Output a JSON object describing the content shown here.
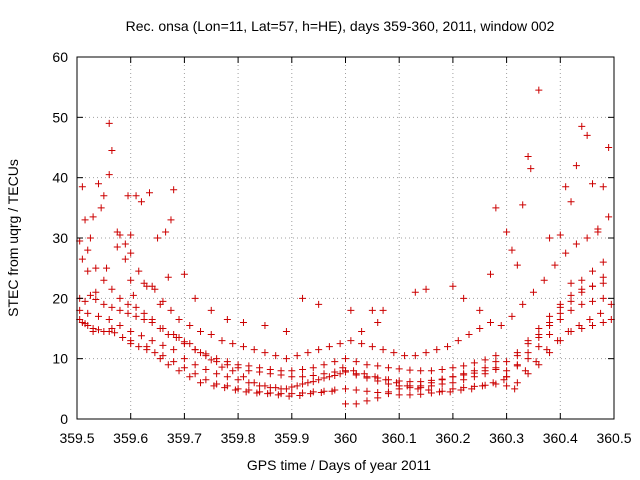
{
  "chart_data": {
    "type": "scatter",
    "title": "Rec. onsa (Lon=11, Lat=57, h=HE), days 359-360, 2011, window 002",
    "xlabel": "GPS time / Days of year 2011",
    "ylabel": "STEC from uqrg / TECUs",
    "xlim": [
      359.5,
      360.5
    ],
    "ylim": [
      0,
      60
    ],
    "xticks": [
      359.5,
      359.6,
      359.7,
      359.8,
      359.9,
      360,
      360.1,
      360.2,
      360.3,
      360.4,
      360.5
    ],
    "xtick_labels": [
      "359.5",
      "359.6",
      "359.7",
      "359.8",
      "359.9",
      "360",
      "360.1",
      "360.2",
      "360.3",
      "360.4",
      "360.5"
    ],
    "yticks": [
      0,
      10,
      20,
      30,
      40,
      50,
      60
    ],
    "ytick_labels": [
      "0",
      "10",
      "20",
      "30",
      "40",
      "50",
      "60"
    ],
    "grid": true,
    "marker": "plus",
    "color": "#cc0000",
    "series": [
      {
        "x": [
          359.505,
          359.51,
          359.515,
          359.52,
          359.53,
          359.54,
          359.55,
          359.56,
          359.57,
          359.585,
          359.6,
          359.615,
          359.63,
          359.645,
          359.66,
          359.68,
          359.7,
          359.72,
          359.74,
          359.76,
          359.78,
          359.8,
          359.82,
          359.84,
          359.86,
          359.88,
          359.9,
          359.92,
          359.94,
          359.96,
          359.98,
          360.0,
          360.02,
          360.04,
          360.06,
          360.08,
          360.1,
          360.12,
          360.14,
          360.16,
          360.18,
          360.2,
          360.22,
          360.24,
          360.26,
          360.28,
          360.3,
          360.32,
          360.34,
          360.36,
          360.38,
          360.4,
          360.42,
          360.44,
          360.46,
          360.48,
          360.495
        ],
        "y": [
          16.5,
          16.0,
          15.8,
          15.5,
          15.0,
          14.8,
          14.5,
          14.5,
          14.3,
          13.5,
          12.5,
          12.0,
          11.5,
          11.0,
          10.5,
          9.5,
          8.5,
          7.5,
          6.5,
          5.8,
          5.5,
          5.0,
          4.8,
          4.5,
          4.3,
          4.2,
          4.2,
          4.3,
          4.5,
          4.6,
          4.8,
          5.0,
          4.8,
          4.6,
          4.4,
          4.2,
          4.0,
          4.0,
          4.1,
          4.3,
          4.6,
          5.0,
          5.2,
          5.4,
          5.6,
          5.8,
          5.5,
          6.0,
          7.5,
          9.0,
          11.0,
          13.0,
          14.5,
          15.0,
          15.5,
          16.0,
          16.5
        ]
      },
      {
        "x": [
          359.505,
          359.515,
          359.525,
          359.535,
          359.55,
          359.565,
          359.58,
          359.595,
          359.61,
          359.625,
          359.64,
          359.655,
          359.67,
          359.685,
          359.7,
          359.72,
          359.74,
          359.76,
          359.78,
          359.8,
          359.82,
          359.84,
          359.86,
          359.88,
          359.9,
          359.92,
          359.94,
          359.96,
          359.98,
          360.0,
          360.02,
          360.04,
          360.06,
          360.08,
          360.1,
          360.12,
          360.14,
          360.16,
          360.18,
          360.2,
          360.22,
          360.24,
          360.26,
          360.28,
          360.3,
          360.32,
          360.34,
          360.36,
          360.38,
          360.4,
          360.42,
          360.44,
          360.46,
          360.48,
          360.495
        ],
        "y": [
          20.0,
          19.5,
          20.5,
          19.8,
          19.0,
          18.5,
          18.0,
          17.5,
          17.0,
          16.5,
          16.0,
          15.0,
          14.0,
          13.5,
          12.5,
          11.5,
          10.5,
          9.5,
          9.0,
          8.5,
          8.0,
          7.8,
          7.5,
          7.3,
          7.0,
          7.0,
          7.2,
          7.5,
          7.8,
          8.0,
          7.5,
          7.0,
          6.8,
          6.5,
          6.3,
          6.2,
          6.2,
          6.4,
          6.6,
          7.0,
          7.3,
          7.6,
          8.0,
          8.5,
          8.0,
          8.8,
          10.0,
          12.0,
          14.0,
          16.5,
          18.0,
          19.0,
          19.5,
          20.0,
          19.0
        ]
      },
      {
        "x": [
          359.51,
          359.52,
          359.535,
          359.55,
          359.565,
          359.58,
          359.595,
          359.61,
          359.625,
          359.64,
          359.66,
          359.68,
          359.7,
          359.72,
          359.74,
          359.76,
          359.78,
          359.8,
          359.82,
          359.84,
          359.86,
          359.88,
          359.9,
          359.92,
          359.94,
          359.96,
          359.98,
          360.0,
          360.02,
          360.04,
          360.06,
          360.08,
          360.1,
          360.12,
          360.14,
          360.16,
          360.18,
          360.2,
          360.22,
          360.24,
          360.26,
          360.28,
          360.3,
          360.32,
          360.34,
          360.36,
          360.38,
          360.4,
          360.42,
          360.44,
          360.46,
          360.48
        ],
        "y": [
          26.5,
          28.0,
          25.0,
          23.0,
          21.5,
          20.0,
          19.0,
          18.5,
          17.5,
          16.5,
          15.0,
          14.0,
          12.8,
          11.5,
          10.8,
          10.0,
          9.5,
          9.0,
          8.8,
          8.5,
          8.2,
          8.0,
          8.0,
          8.2,
          8.5,
          9.0,
          9.5,
          10.0,
          9.5,
          9.0,
          8.8,
          8.5,
          8.3,
          8.1,
          8.0,
          8.0,
          8.2,
          8.5,
          8.8,
          9.3,
          9.8,
          10.5,
          9.5,
          11.0,
          13.0,
          15.0,
          17.0,
          19.0,
          20.5,
          21.5,
          22.0,
          23.5
        ]
      },
      {
        "x": [
          359.505,
          359.515,
          359.53,
          359.545,
          359.56,
          359.575,
          359.59,
          359.6,
          359.615,
          359.63,
          359.645,
          359.66,
          359.675,
          359.69,
          359.71,
          359.73,
          359.75,
          359.77,
          359.79,
          359.81,
          359.83,
          359.85,
          359.87,
          359.89,
          359.91,
          359.93,
          359.95,
          359.97,
          359.99,
          360.01,
          360.03,
          360.05,
          360.07,
          360.09,
          360.11,
          360.13,
          360.15,
          360.17,
          360.19,
          360.21,
          360.23,
          360.25,
          360.27,
          360.29,
          360.31,
          360.33,
          360.35,
          360.37,
          360.39,
          360.41,
          360.43,
          360.45,
          360.47,
          360.49
        ],
        "y": [
          29.5,
          33.0,
          33.5,
          35.0,
          40.5,
          31.0,
          29.0,
          27.5,
          24.5,
          22.0,
          21.5,
          19.5,
          18.0,
          16.5,
          15.5,
          14.5,
          14.0,
          13.0,
          12.5,
          12.0,
          11.5,
          11.0,
          10.5,
          10.0,
          10.5,
          11.0,
          11.5,
          12.0,
          12.5,
          13.0,
          12.5,
          12.0,
          11.5,
          11.0,
          10.5,
          10.5,
          11.0,
          11.5,
          12.0,
          13.0,
          14.0,
          15.0,
          16.0,
          15.5,
          17.0,
          19.0,
          21.0,
          23.0,
          25.5,
          27.5,
          29.0,
          30.0,
          31.0,
          33.5
        ]
      },
      {
        "x": [
          359.51,
          359.525,
          359.54,
          359.55,
          359.56,
          359.565,
          359.58,
          359.595,
          359.6,
          359.61,
          359.62,
          359.635,
          359.65,
          359.665,
          359.675,
          359.68,
          359.7,
          359.72,
          359.75,
          359.78,
          359.81,
          359.85,
          359.89,
          359.92,
          359.95,
          360.01,
          360.03,
          360.05,
          360.06,
          360.07,
          360.13,
          360.15,
          360.2,
          360.22,
          360.25,
          360.27,
          360.28,
          360.3,
          360.31,
          360.32,
          360.33,
          360.34,
          360.345,
          360.36,
          360.38,
          360.4,
          360.41,
          360.42,
          360.43,
          360.44,
          360.45,
          360.46,
          360.47,
          360.48,
          360.49
        ],
        "y": [
          38.5,
          30.0,
          39.0,
          37.0,
          49.0,
          44.5,
          30.5,
          37.0,
          30.5,
          37.0,
          36.0,
          37.5,
          30.0,
          31.0,
          33.0,
          38.0,
          24.0,
          20.0,
          18.0,
          16.5,
          16.0,
          15.5,
          14.5,
          20.0,
          19.0,
          18.0,
          14.5,
          18.0,
          16.0,
          18.0,
          21.0,
          21.5,
          22.0,
          20.0,
          18.0,
          24.0,
          35.0,
          31.0,
          28.0,
          25.5,
          35.5,
          43.5,
          41.5,
          54.5,
          30.0,
          30.5,
          38.5,
          36.0,
          42.0,
          48.5,
          47.0,
          39.0,
          31.5,
          38.5,
          45.0
        ]
      },
      {
        "x": [
          359.52,
          359.535,
          359.555,
          359.575,
          359.59,
          359.6,
          359.605,
          359.625,
          359.64,
          359.655,
          359.67,
          359.69,
          359.71,
          359.73,
          359.75,
          359.77,
          359.79,
          359.81,
          359.83,
          359.85,
          359.87,
          359.89,
          359.91,
          359.93,
          359.95,
          359.97,
          359.99,
          360.0,
          360.02,
          360.04,
          360.06,
          360.08,
          360.1,
          360.12,
          360.14,
          360.16,
          360.18,
          360.2,
          360.22,
          360.24,
          360.26,
          360.28,
          360.3,
          360.32,
          360.34,
          360.36,
          360.38,
          360.4,
          360.42,
          360.44,
          360.46,
          360.48
        ],
        "y": [
          24.5,
          21.0,
          25.0,
          28.5,
          26.5,
          23.0,
          20.5,
          22.5,
          22.0,
          19.0,
          23.5,
          13.5,
          12.5,
          11.0,
          9.8,
          8.6,
          8.0,
          7.0,
          6.0,
          5.5,
          5.2,
          5.0,
          5.5,
          6.0,
          6.5,
          7.0,
          7.5,
          2.5,
          2.5,
          3.0,
          3.5,
          4.5,
          5.0,
          5.5,
          5.5,
          6.0,
          6.5,
          7.0,
          7.5,
          8.0,
          8.5,
          9.5,
          7.0,
          10.5,
          12.5,
          14.0,
          16.0,
          18.5,
          22.5,
          23.0,
          24.5,
          26.0
        ]
      },
      {
        "x": [
          359.505,
          359.52,
          359.54,
          359.56,
          359.58,
          359.6,
          359.62,
          359.64,
          359.66,
          359.68,
          359.7,
          359.72,
          359.74,
          359.76,
          359.78,
          359.8,
          359.82,
          359.84,
          359.86,
          359.88,
          359.9,
          359.92,
          359.94,
          359.96,
          359.98,
          360.0,
          360.02,
          360.04,
          360.06,
          360.08,
          360.1,
          360.12,
          360.14,
          360.16,
          360.18,
          360.2,
          360.22,
          360.24,
          360.26,
          360.28,
          360.3,
          360.32,
          360.34,
          360.36,
          360.38,
          360.4,
          360.42,
          360.44,
          360.46,
          360.48
        ],
        "y": [
          18.0,
          17.5,
          17.0,
          16.5,
          15.5,
          14.5,
          13.8,
          13.0,
          12.2,
          11.5,
          10.0,
          9.0,
          8.2,
          7.5,
          7.0,
          6.5,
          6.0,
          5.5,
          5.2,
          5.0,
          5.3,
          5.8,
          6.2,
          6.8,
          7.2,
          7.8,
          7.3,
          6.8,
          6.3,
          5.8,
          5.5,
          5.2,
          5.2,
          5.5,
          5.8,
          6.0,
          6.5,
          7.0,
          7.5,
          8.2,
          7.0,
          9.0,
          11.0,
          13.5,
          15.5,
          17.5,
          19.5,
          21.0,
          22.0,
          22.5
        ]
      },
      {
        "x": [
          359.53,
          359.565,
          359.6,
          359.63,
          359.655,
          359.67,
          359.69,
          359.71,
          359.73,
          359.755,
          359.775,
          359.795,
          359.815,
          359.835,
          359.855,
          359.875,
          359.895,
          359.915,
          359.935,
          359.955,
          359.975,
          359.995,
          360.015,
          360.035,
          360.055,
          360.075,
          360.095,
          360.115,
          360.135,
          360.155,
          360.175,
          360.195,
          360.215,
          360.235,
          360.255,
          360.275,
          360.295,
          360.315,
          360.335,
          360.355,
          360.375,
          360.395,
          360.415,
          360.435,
          360.455,
          360.475
        ],
        "y": [
          14.5,
          15.0,
          13.0,
          12.0,
          10.0,
          9.0,
          8.0,
          7.0,
          6.0,
          5.5,
          5.2,
          4.8,
          4.5,
          4.3,
          4.2,
          4.0,
          3.8,
          3.9,
          4.2,
          4.4,
          4.6,
          8.5,
          8.0,
          7.5,
          7.0,
          6.5,
          6.0,
          5.5,
          5.0,
          4.8,
          4.5,
          4.5,
          4.8,
          5.0,
          5.5,
          6.0,
          6.5,
          5.0,
          8.0,
          9.5,
          11.5,
          13.0,
          14.5,
          15.5,
          16.5,
          17.5
        ]
      }
    ]
  }
}
